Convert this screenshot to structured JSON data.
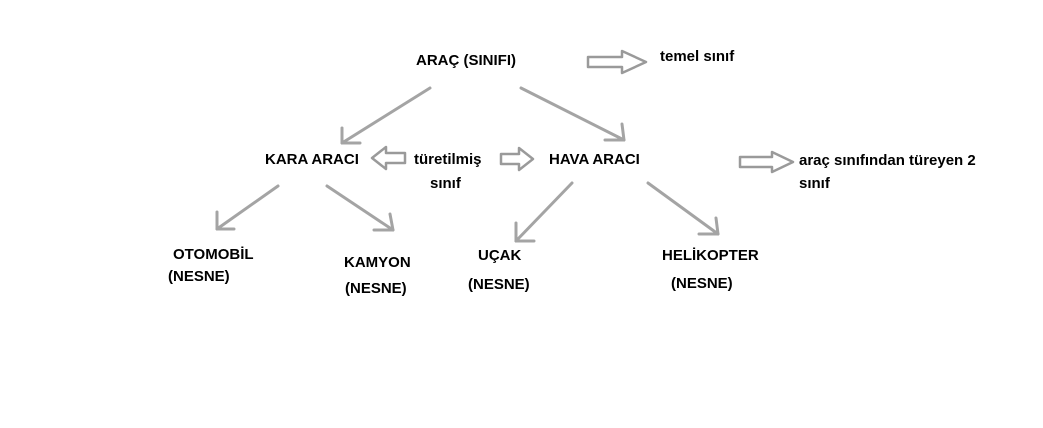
{
  "nodes": {
    "root": "ARAÇ (SINIFI)",
    "land": "KARA ARACI",
    "air": "HAVA ARACI",
    "car": "OTOMOBİL",
    "car_tag": "(NESNE)",
    "truck": "KAMYON",
    "truck_tag": "(NESNE)",
    "plane": "UÇAK",
    "plane_tag": "(NESNE)",
    "heli": "HELİKOPTER",
    "heli_tag": "(NESNE)"
  },
  "notes": {
    "base_class": "temel sınıf",
    "derived_line1": "türetilmiş",
    "derived_line2": "sınıf",
    "two_derived_line1": "araç sınıfından türeyen 2",
    "two_derived_line2": "sınıf"
  },
  "colors": {
    "arrow": "#a4a4a4",
    "text": "#000000",
    "background": "#ffffff"
  }
}
